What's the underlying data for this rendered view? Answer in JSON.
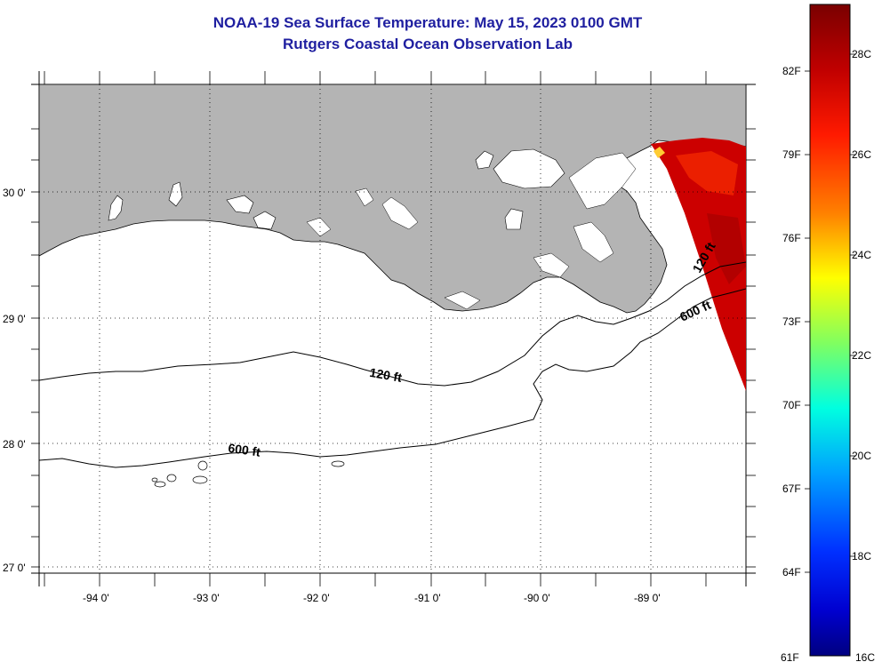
{
  "title_line1": "NOAA-19 Sea Surface Temperature:  May 15, 2023 0100 GMT",
  "title_line2": "Rutgers Coastal Ocean Observation Lab",
  "lat_labels": [
    "30 0'",
    "29 0'",
    "28 0'",
    "27 0'"
  ],
  "lon_labels": [
    "-94 0'",
    "-93 0'",
    "-92 0'",
    "-91 0'",
    "-90 0'",
    "-89 0'"
  ],
  "contours": [
    "120 ft",
    "600 ft"
  ],
  "colorbar": {
    "fahrenheit": [
      "82F",
      "79F",
      "76F",
      "73F",
      "70F",
      "67F",
      "64F",
      "61F"
    ],
    "celsius": [
      "28C",
      "26C",
      "24C",
      "22C",
      "20C",
      "18C",
      "16C"
    ],
    "colors": [
      "#7f0000",
      "#c00000",
      "#ff2000",
      "#ff8000",
      "#ffe000",
      "#a0ff40",
      "#20ffd0",
      "#00a0ff",
      "#0030ff",
      "#0000c0",
      "#000080"
    ]
  }
}
